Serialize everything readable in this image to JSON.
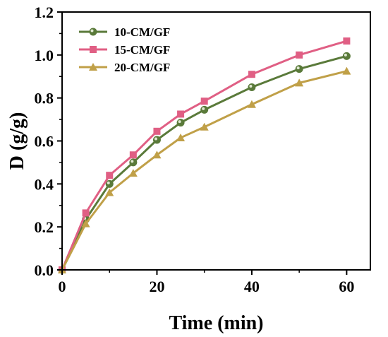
{
  "chart_data": {
    "type": "line",
    "xlabel": "Time (min)",
    "ylabel": "D (g/g)",
    "xlim": [
      0,
      65
    ],
    "ylim": [
      0,
      1.2
    ],
    "x_ticks": [
      0,
      20,
      40,
      60
    ],
    "y_ticks": [
      0.0,
      0.2,
      0.4,
      0.6,
      0.8,
      1.0,
      1.2
    ],
    "x_tick_labels": [
      "0",
      "20",
      "40",
      "60"
    ],
    "y_tick_labels": [
      "0.0",
      "0.2",
      "0.4",
      "0.6",
      "0.8",
      "1.0",
      "1.2"
    ],
    "grid": false,
    "legend_position": "top-left",
    "x": [
      0,
      5,
      10,
      15,
      20,
      25,
      30,
      40,
      50,
      60
    ],
    "series": [
      {
        "name": "10-CM/GF",
        "color": "#5a7a3a",
        "marker": "circle",
        "values": [
          0.0,
          0.235,
          0.4,
          0.5,
          0.605,
          0.685,
          0.745,
          0.85,
          0.935,
          0.995
        ]
      },
      {
        "name": "15-CM/GF",
        "color": "#e05f84",
        "marker": "square",
        "values": [
          0.0,
          0.265,
          0.44,
          0.535,
          0.645,
          0.725,
          0.785,
          0.91,
          1.0,
          1.065
        ]
      },
      {
        "name": "20-CM/GF",
        "color": "#c0a048",
        "marker": "triangle",
        "values": [
          0.0,
          0.215,
          0.36,
          0.45,
          0.535,
          0.615,
          0.665,
          0.77,
          0.87,
          0.925
        ]
      }
    ]
  }
}
